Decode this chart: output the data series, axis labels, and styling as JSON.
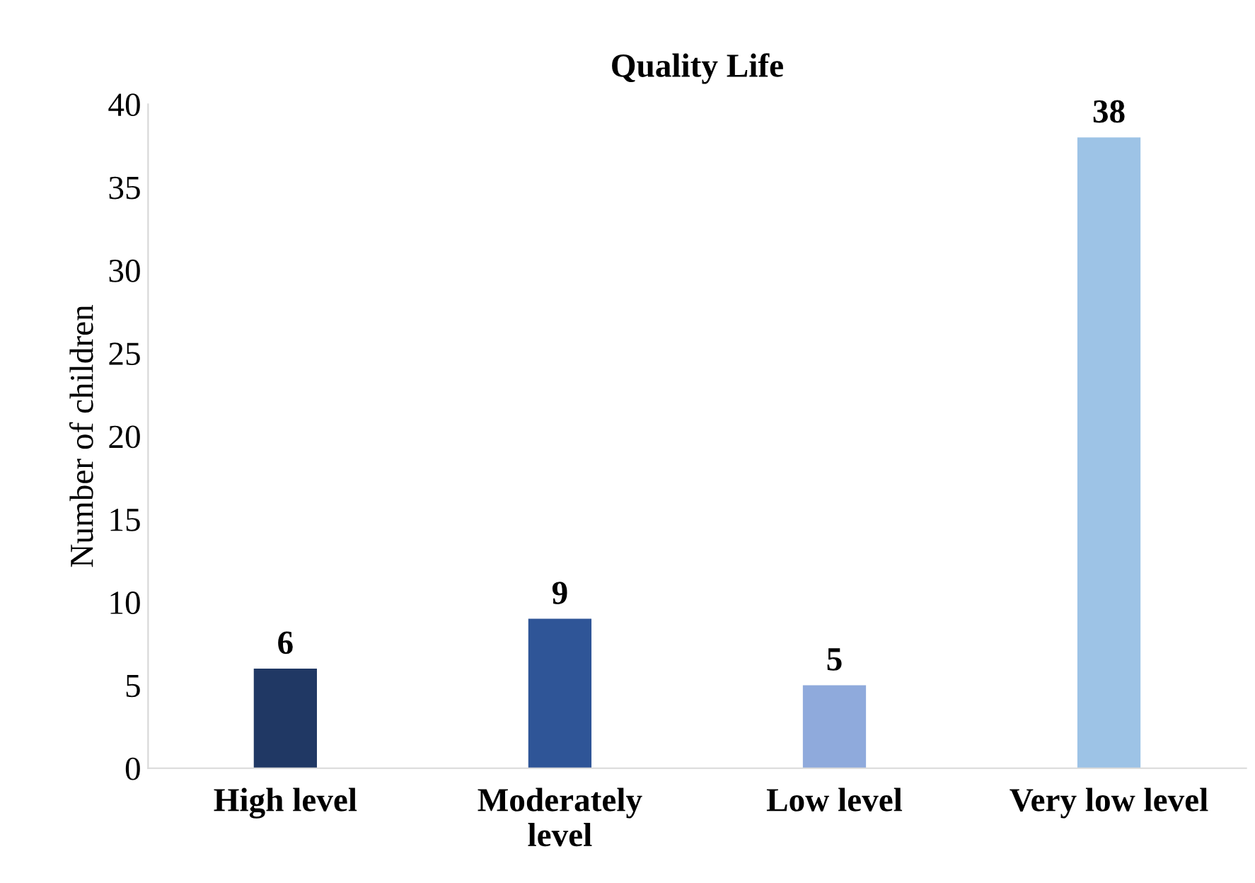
{
  "chart_data": {
    "type": "bar",
    "title": "Quality Life",
    "ylabel": "Number of children",
    "categories": [
      "High level",
      "Moderately\nlevel",
      "Low level",
      "Very low level"
    ],
    "values": [
      6,
      9,
      5,
      38
    ],
    "colors": [
      "#203864",
      "#2f5597",
      "#8faadc",
      "#9dc3e6"
    ],
    "ylim": [
      0,
      40
    ],
    "yticks": [
      0,
      5,
      10,
      15,
      20,
      25,
      30,
      35,
      40
    ],
    "grid": false,
    "legend": false,
    "data_labels": true
  }
}
